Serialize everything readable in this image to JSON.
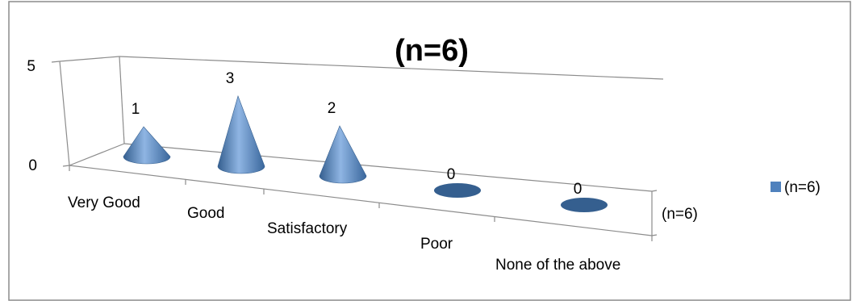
{
  "chart_data": {
    "type": "bar",
    "subtype": "3d-cone",
    "title": "(n=6)",
    "categories": [
      "Very Good",
      "Good",
      "Satisfactory",
      "Poor",
      "None of the above"
    ],
    "series": [
      {
        "name": "(n=6)",
        "values": [
          1,
          3,
          2,
          0,
          0
        ]
      }
    ],
    "ylim": [
      0,
      5
    ],
    "yticks": [
      0,
      5
    ],
    "depth_axis_label": "(n=6)",
    "legend_position": "right",
    "grid": false,
    "colors": {
      "series": "#4f81bd",
      "series_dark": "#355f8f",
      "series_light": "#8fb5e3",
      "border": "#888888"
    }
  }
}
